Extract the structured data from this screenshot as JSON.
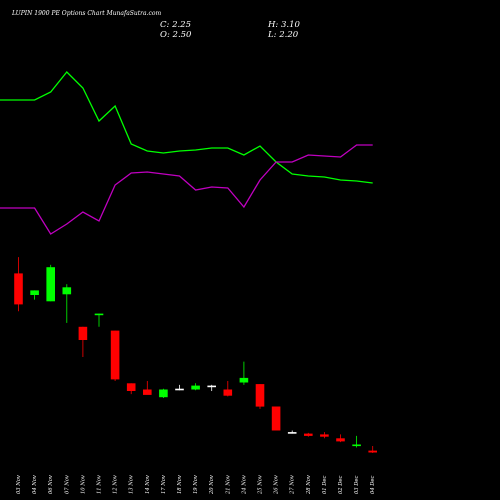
{
  "chart_title": "LUPIN 1900 PE Options Chart MunafaSutra.com",
  "ohlc": {
    "close": "C: 2.25",
    "high": "H: 3.10",
    "open": "O: 2.50",
    "low": "L: 2.20"
  },
  "colors": {
    "background": "#000000",
    "up": "#00ff00",
    "down": "#ff0000",
    "neutral": "#ffffff",
    "line_green": "#00ff00",
    "line_magenta": "#c000c0"
  },
  "chart_data": {
    "type": "candlestick",
    "title": "LUPIN 1900 PE Options Chart MunafaSutra.com",
    "categories": [
      "03 Nov",
      "04 Nov",
      "06 Nov",
      "07 Nov",
      "10 Nov",
      "11 Nov",
      "12 Nov",
      "13 Nov",
      "14 Nov",
      "17 Nov",
      "18 Nov",
      "19 Nov",
      "20 Nov",
      "21 Nov",
      "24 Nov",
      "25 Nov",
      "26 Nov",
      "27 Nov",
      "28 Nov",
      "01 Dec",
      "02 Dec",
      "03 Dec",
      "04 Dec"
    ],
    "candles": [
      {
        "o": 25.4,
        "h": 27.5,
        "l": 20.5,
        "c": 21.4
      },
      {
        "o": 22.6,
        "h": 23.2,
        "l": 22.0,
        "c": 23.2
      },
      {
        "o": 21.8,
        "h": 26.5,
        "l": 21.8,
        "c": 26.2
      },
      {
        "o": 22.7,
        "h": 24.0,
        "l": 19.0,
        "c": 23.6
      },
      {
        "o": 18.5,
        "h": 18.5,
        "l": 14.6,
        "c": 16.8
      },
      {
        "o": 20.0,
        "h": 20.2,
        "l": 18.5,
        "c": 20.2
      },
      {
        "o": 18.0,
        "h": 18.0,
        "l": 11.5,
        "c": 11.7
      },
      {
        "o": 11.2,
        "h": 11.2,
        "l": 9.8,
        "c": 10.2
      },
      {
        "o": 10.4,
        "h": 11.5,
        "l": 9.8,
        "c": 9.7
      },
      {
        "o": 9.4,
        "h": 10.5,
        "l": 9.3,
        "c": 10.4
      },
      {
        "o": 10.5,
        "h": 11.0,
        "l": 10.3,
        "c": 10.5
      },
      {
        "o": 10.4,
        "h": 11.2,
        "l": 10.3,
        "c": 10.9
      },
      {
        "o": 10.8,
        "h": 11.0,
        "l": 10.2,
        "c": 10.9
      },
      {
        "o": 10.4,
        "h": 11.5,
        "l": 9.5,
        "c": 9.6
      },
      {
        "o": 11.3,
        "h": 14.0,
        "l": 11.0,
        "c": 11.9
      },
      {
        "o": 11.1,
        "h": 11.1,
        "l": 7.9,
        "c": 8.2
      },
      {
        "o": 8.2,
        "h": 8.2,
        "l": 5.2,
        "c": 5.1
      },
      {
        "o": 4.9,
        "h": 5.1,
        "l": 4.7,
        "c": 4.9
      },
      {
        "o": 4.7,
        "h": 4.8,
        "l": 4.3,
        "c": 4.4
      },
      {
        "o": 4.6,
        "h": 4.9,
        "l": 4.1,
        "c": 4.3
      },
      {
        "o": 4.1,
        "h": 4.6,
        "l": 3.6,
        "c": 3.7
      },
      {
        "o": 3.1,
        "h": 4.4,
        "l": 2.9,
        "c": 3.3
      },
      {
        "o": 2.5,
        "h": 3.1,
        "l": 2.2,
        "c": 2.25
      }
    ],
    "price_range": [
      0,
      31
    ],
    "indicator_lines": [
      {
        "color": "#00ff00",
        "values": [
          100,
          100,
          92,
          72,
          88,
          121,
          106,
          144,
          151,
          153,
          151,
          150,
          148,
          148,
          155,
          146,
          162,
          174,
          176,
          177,
          180,
          181,
          183
        ]
      },
      {
        "color": "#c000c0",
        "values": [
          208,
          208,
          234,
          224,
          212,
          221,
          185,
          173,
          172,
          174,
          176,
          190,
          187,
          188,
          207,
          180,
          162,
          162,
          155,
          156,
          157,
          145,
          145
        ]
      }
    ],
    "indicator_range": [
      0,
      500
    ]
  }
}
